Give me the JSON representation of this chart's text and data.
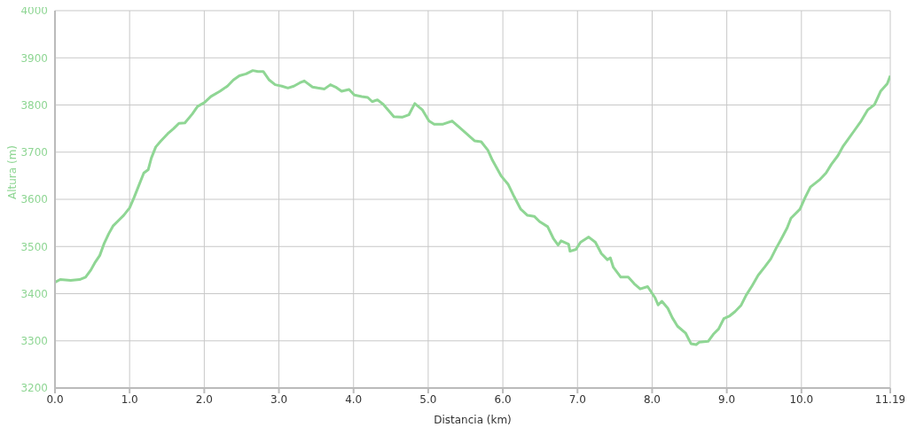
{
  "chart_data": {
    "type": "line",
    "xlabel": "Distancia (km)",
    "ylabel": "Altura (m)",
    "xlim": [
      0,
      11.19
    ],
    "ylim": [
      3200,
      4000
    ],
    "xticks": [
      {
        "value": 0,
        "label": "0.0"
      },
      {
        "value": 1,
        "label": "1.0"
      },
      {
        "value": 2,
        "label": "2.0"
      },
      {
        "value": 3,
        "label": "3.0"
      },
      {
        "value": 4,
        "label": "4.0"
      },
      {
        "value": 5,
        "label": "5.0"
      },
      {
        "value": 6,
        "label": "6.0"
      },
      {
        "value": 7,
        "label": "7.0"
      },
      {
        "value": 8,
        "label": "8.0"
      },
      {
        "value": 9,
        "label": "9.0"
      },
      {
        "value": 10,
        "label": "10.0"
      },
      {
        "value": 11.19,
        "label": "11.19"
      }
    ],
    "yticks": [
      3200,
      3300,
      3400,
      3500,
      3600,
      3700,
      3800,
      3900,
      4000
    ],
    "grid": true,
    "legend": false,
    "marker": "none",
    "line_style": "solid",
    "x": [
      0,
      0.07,
      0.21,
      0.33,
      0.41,
      0.48,
      0.54,
      0.6,
      0.66,
      0.72,
      0.78,
      0.85,
      0.92,
      1.0,
      1.06,
      1.12,
      1.19,
      1.25,
      1.29,
      1.35,
      1.42,
      1.51,
      1.59,
      1.66,
      1.74,
      1.84,
      1.91,
      2.0,
      2.09,
      2.21,
      2.31,
      2.39,
      2.47,
      2.56,
      2.65,
      2.72,
      2.79,
      2.87,
      2.95,
      3.04,
      3.12,
      3.2,
      3.28,
      3.34,
      3.45,
      3.52,
      3.61,
      3.69,
      3.76,
      3.84,
      3.94,
      4.01,
      4.11,
      4.19,
      4.25,
      4.32,
      4.4,
      4.54,
      4.65,
      4.74,
      4.82,
      4.92,
      5.01,
      5.08,
      5.19,
      5.32,
      5.45,
      5.62,
      5.71,
      5.8,
      5.86,
      5.98,
      6.07,
      6.15,
      6.24,
      6.33,
      6.42,
      6.49,
      6.6,
      6.68,
      6.74,
      6.78,
      6.88,
      6.9,
      6.98,
      7.04,
      7.15,
      7.24,
      7.32,
      7.4,
      7.44,
      7.48,
      7.58,
      7.68,
      7.76,
      7.84,
      7.94,
      8.04,
      8.08,
      8.13,
      8.21,
      8.27,
      8.34,
      8.45,
      8.52,
      8.59,
      8.63,
      8.75,
      8.82,
      8.89,
      8.96,
      9.04,
      9.11,
      9.19,
      9.26,
      9.34,
      9.42,
      9.51,
      9.59,
      9.66,
      9.73,
      9.81,
      9.86,
      9.98,
      10.05,
      10.12,
      10.24,
      10.33,
      10.4,
      10.49,
      10.56,
      10.62,
      10.71,
      10.8,
      10.89,
      10.98,
      11.06,
      11.15,
      11.19
    ],
    "series": [
      {
        "color": "#8fd694",
        "values": [
          3424,
          3430,
          3428,
          3430,
          3435,
          3450,
          3467,
          3481,
          3507,
          3527,
          3544,
          3555,
          3566,
          3582,
          3604,
          3628,
          3656,
          3663,
          3687,
          3711,
          3724,
          3739,
          3750,
          3761,
          3762,
          3781,
          3797,
          3805,
          3818,
          3829,
          3840,
          3853,
          3862,
          3866,
          3873,
          3871,
          3871,
          3853,
          3843,
          3840,
          3836,
          3840,
          3847,
          3851,
          3838,
          3836,
          3834,
          3843,
          3838,
          3829,
          3833,
          3821,
          3818,
          3816,
          3807,
          3811,
          3801,
          3775,
          3774,
          3779,
          3803,
          3790,
          3766,
          3759,
          3759,
          3766,
          3748,
          3724,
          3722,
          3704,
          3683,
          3649,
          3632,
          3606,
          3579,
          3566,
          3564,
          3553,
          3542,
          3516,
          3503,
          3512,
          3505,
          3490,
          3494,
          3509,
          3520,
          3509,
          3485,
          3472,
          3476,
          3456,
          3435,
          3435,
          3421,
          3410,
          3415,
          3391,
          3376,
          3384,
          3369,
          3349,
          3331,
          3316,
          3294,
          3292,
          3297,
          3299,
          3314,
          3325,
          3347,
          3353,
          3362,
          3375,
          3397,
          3417,
          3439,
          3457,
          3474,
          3496,
          3516,
          3540,
          3560,
          3579,
          3604,
          3626,
          3641,
          3656,
          3674,
          3693,
          3713,
          3726,
          3746,
          3766,
          3790,
          3801,
          3829,
          3845,
          3862
        ]
      }
    ]
  }
}
